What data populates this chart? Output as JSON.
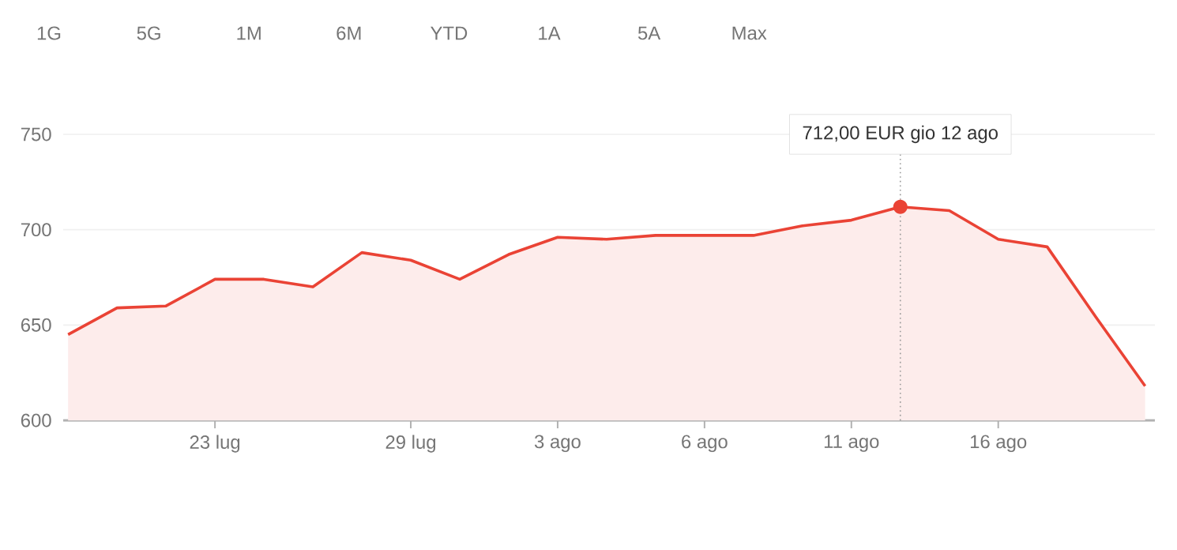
{
  "chart_data": {
    "type": "area",
    "color": "#ea4335",
    "categories": [
      null,
      null,
      null,
      "23 lug",
      null,
      null,
      null,
      "29 lug",
      null,
      null,
      "3 ago",
      null,
      null,
      "6 ago",
      null,
      null,
      "11 ago",
      null,
      null,
      "16 ago",
      null,
      null,
      null
    ],
    "values": [
      645,
      659,
      660,
      674,
      674,
      670,
      688,
      684,
      674,
      687,
      696,
      695,
      697,
      697,
      697,
      702,
      705,
      712,
      710,
      695,
      691,
      654,
      618
    ],
    "ylim": [
      600,
      750
    ],
    "yticks": [
      600,
      650,
      700,
      750
    ],
    "grid": "y",
    "annotations": [
      "1G",
      "5G",
      "1M",
      "6M",
      "YTD",
      "1A",
      "5A",
      "Max",
      "712,00 EUR  gio 12 ago"
    ]
  }
}
